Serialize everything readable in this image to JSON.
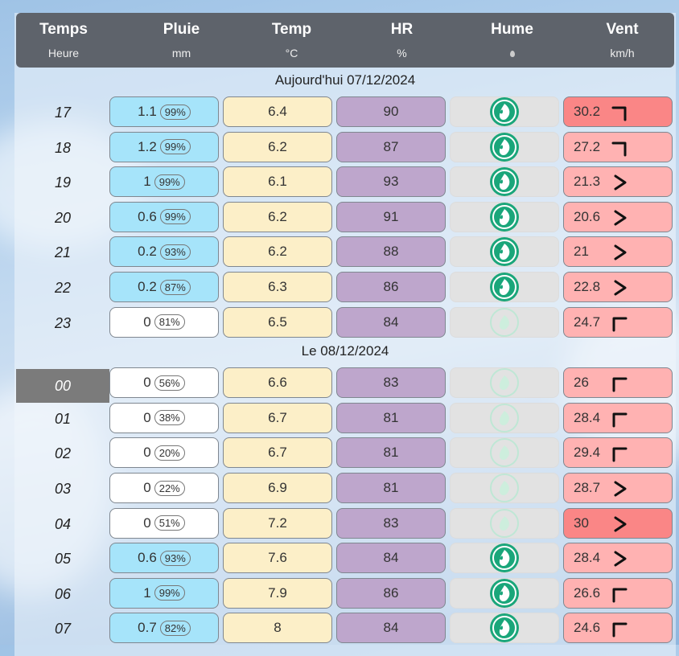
{
  "columns": [
    {
      "title": "Temps",
      "unit": "Heure"
    },
    {
      "title": "Pluie",
      "unit": "mm"
    },
    {
      "title": "Temp",
      "unit": "°C"
    },
    {
      "title": "HR",
      "unit": "%"
    },
    {
      "title": "Hume",
      "unit": ""
    },
    {
      "title": "Vent",
      "unit": "km/h"
    }
  ],
  "days": [
    {
      "label": "Aujourd'hui 07/12/2024",
      "rows": [
        {
          "hour": "17",
          "rain": "1.1",
          "prob": "99%",
          "temp": "6.4",
          "hr": "90",
          "wet": true,
          "wind": "30.2",
          "dir": "ne",
          "hot": true
        },
        {
          "hour": "18",
          "rain": "1.2",
          "prob": "99%",
          "temp": "6.2",
          "hr": "87",
          "wet": true,
          "wind": "27.2",
          "dir": "ne",
          "hot": false
        },
        {
          "hour": "19",
          "rain": "1",
          "prob": "99%",
          "temp": "6.1",
          "hr": "93",
          "wet": true,
          "wind": "21.3",
          "dir": "e",
          "hot": false
        },
        {
          "hour": "20",
          "rain": "0.6",
          "prob": "99%",
          "temp": "6.2",
          "hr": "91",
          "wet": true,
          "wind": "20.6",
          "dir": "e",
          "hot": false
        },
        {
          "hour": "21",
          "rain": "0.2",
          "prob": "93%",
          "temp": "6.2",
          "hr": "88",
          "wet": true,
          "wind": "21",
          "dir": "e",
          "hot": false
        },
        {
          "hour": "22",
          "rain": "0.2",
          "prob": "87%",
          "temp": "6.3",
          "hr": "86",
          "wet": true,
          "wind": "22.8",
          "dir": "e",
          "hot": false
        },
        {
          "hour": "23",
          "rain": "0",
          "prob": "81%",
          "temp": "6.5",
          "hr": "84",
          "wet": false,
          "wind": "24.7",
          "dir": "nw",
          "hot": false
        }
      ]
    },
    {
      "label": "Le 08/12/2024",
      "rows": [
        {
          "hour": "00",
          "rain": "0",
          "prob": "56%",
          "temp": "6.6",
          "hr": "83",
          "wet": false,
          "wind": "26",
          "dir": "nw",
          "hot": false,
          "selected": true
        },
        {
          "hour": "01",
          "rain": "0",
          "prob": "38%",
          "temp": "6.7",
          "hr": "81",
          "wet": false,
          "wind": "28.4",
          "dir": "nw",
          "hot": false
        },
        {
          "hour": "02",
          "rain": "0",
          "prob": "20%",
          "temp": "6.7",
          "hr": "81",
          "wet": false,
          "wind": "29.4",
          "dir": "nw",
          "hot": false
        },
        {
          "hour": "03",
          "rain": "0",
          "prob": "22%",
          "temp": "6.9",
          "hr": "81",
          "wet": false,
          "wind": "28.7",
          "dir": "e",
          "hot": false
        },
        {
          "hour": "04",
          "rain": "0",
          "prob": "51%",
          "temp": "7.2",
          "hr": "83",
          "wet": false,
          "wind": "30",
          "dir": "e",
          "hot": true
        },
        {
          "hour": "05",
          "rain": "0.6",
          "prob": "93%",
          "temp": "7.6",
          "hr": "84",
          "wet": true,
          "wind": "28.4",
          "dir": "e",
          "hot": false
        },
        {
          "hour": "06",
          "rain": "1",
          "prob": "99%",
          "temp": "7.9",
          "hr": "86",
          "wet": true,
          "wind": "26.6",
          "dir": "nw",
          "hot": false
        },
        {
          "hour": "07",
          "rain": "0.7",
          "prob": "82%",
          "temp": "8",
          "hr": "84",
          "wet": true,
          "wind": "24.6",
          "dir": "nw",
          "hot": false
        }
      ]
    }
  ],
  "colors": {
    "rain_wet": "#a6e4fa",
    "rain_dry": "#ffffff",
    "hume_green": "#1aa67a",
    "wind_hot": "#fa8686",
    "wind": "#ffb2b2"
  },
  "icons": {
    "humidity": "leaf-drop-icon",
    "wind": "wind-direction-arrow-icon"
  }
}
